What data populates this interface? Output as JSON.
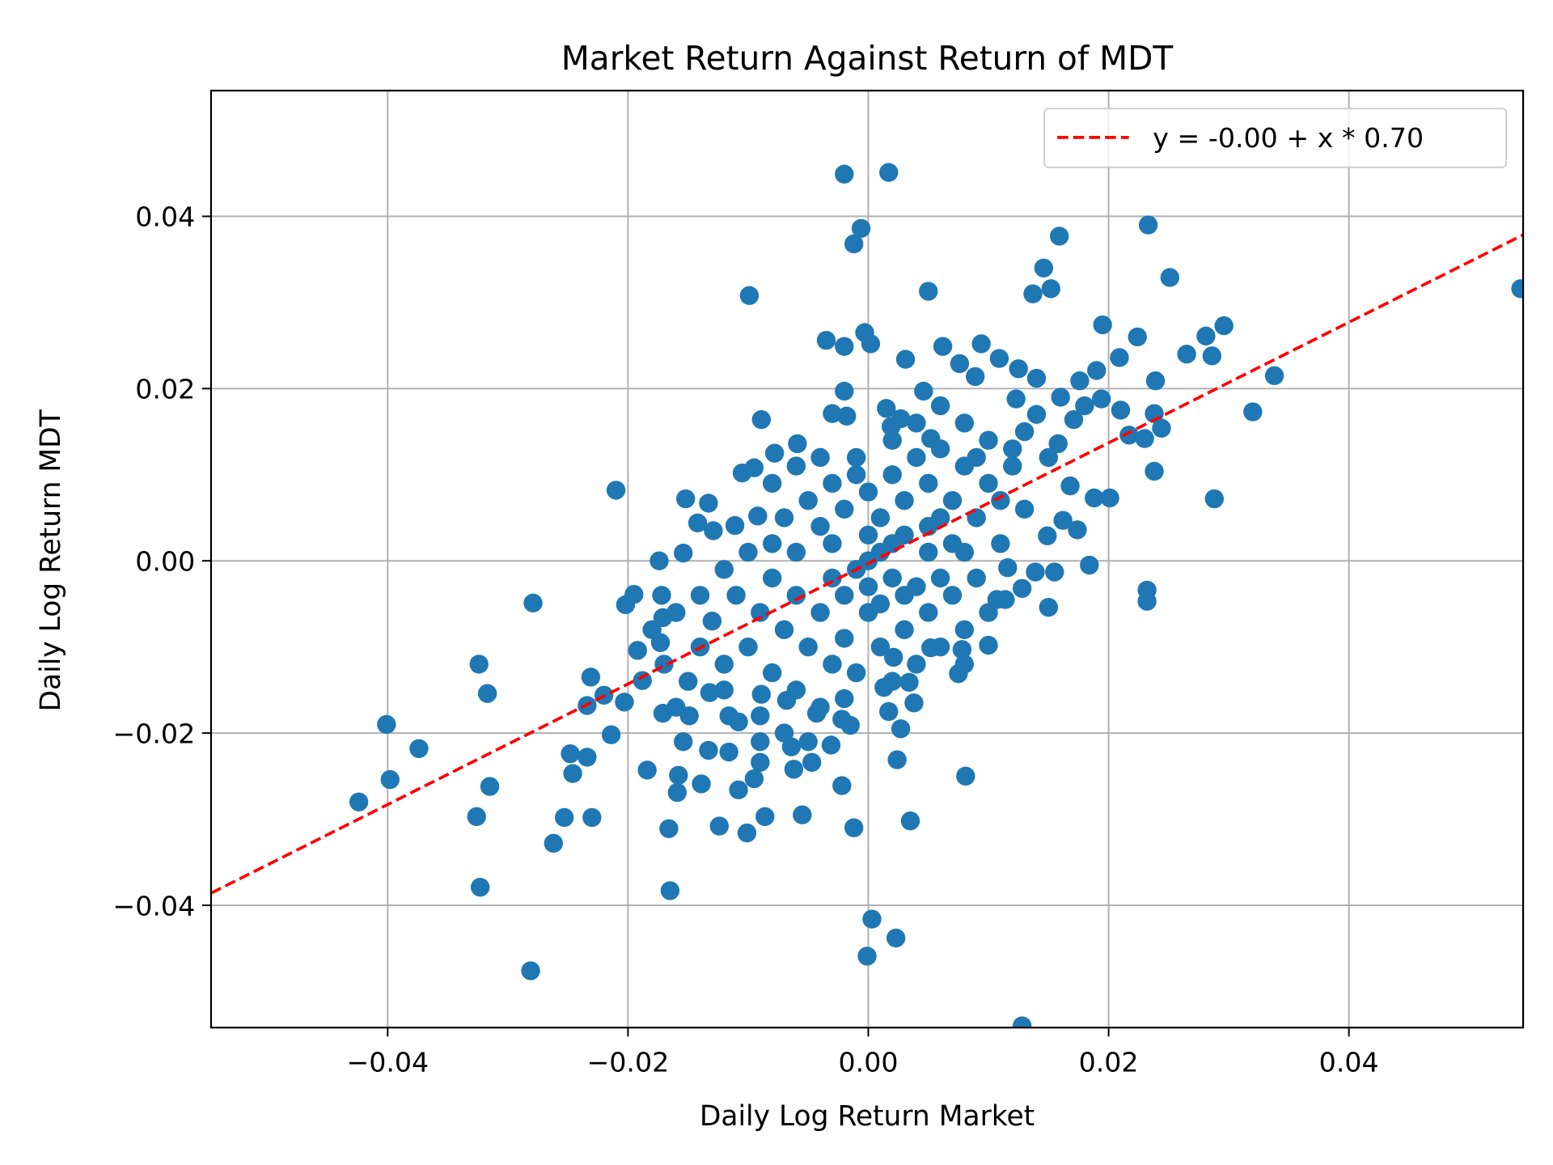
{
  "chart_data": {
    "type": "scatter",
    "title": "Market Return Against Return of MDT",
    "xlabel": "Daily Log Return Market",
    "ylabel": "Daily Log Return MDT",
    "xlim": [
      -0.0547,
      0.0545
    ],
    "ylim": [
      -0.0542,
      0.0546
    ],
    "xticks": [
      -0.04,
      -0.02,
      0.0,
      0.02,
      0.04
    ],
    "xtick_labels": [
      "−0.04",
      "−0.02",
      "0.00",
      "0.02",
      "0.04"
    ],
    "yticks": [
      -0.04,
      -0.02,
      0.0,
      0.02,
      0.04
    ],
    "ytick_labels": [
      "−0.04",
      "−0.02",
      "0.00",
      "0.02",
      "0.04"
    ],
    "grid": true,
    "legend_placement": "top-right",
    "point_color": "#1f77b4",
    "line_color": "#ff0000",
    "fit_line": {
      "label": "y = -0.00 + x * 0.70",
      "intercept": -0.0003,
      "slope": 0.7,
      "style": "dashed"
    },
    "points": [
      [
        -0.002,
        0.0449
      ],
      [
        0.0017,
        0.0451
      ],
      [
        -0.0006,
        0.0386
      ],
      [
        -0.0012,
        0.0368
      ],
      [
        -0.0099,
        0.0308
      ],
      [
        0.0233,
        0.039
      ],
      [
        0.0159,
        0.0377
      ],
      [
        0.0251,
        0.0329
      ],
      [
        0.0146,
        0.034
      ],
      [
        0.0152,
        0.0316
      ],
      [
        0.0137,
        0.031
      ],
      [
        0.005,
        0.0313
      ],
      [
        0.0543,
        0.0316
      ],
      [
        0.0338,
        0.0215
      ],
      [
        0.032,
        0.0173
      ],
      [
        0.0288,
        0.0072
      ],
      [
        0.0296,
        0.0273
      ],
      [
        0.0281,
        0.0261
      ],
      [
        0.0286,
        0.0238
      ],
      [
        0.0265,
        0.024
      ],
      [
        0.0224,
        0.026
      ],
      [
        0.0195,
        0.0274
      ],
      [
        0.0239,
        0.0209
      ],
      [
        0.0238,
        0.0171
      ],
      [
        0.0244,
        0.0154
      ],
      [
        0.023,
        0.0142
      ],
      [
        0.0238,
        0.0104
      ],
      [
        0.0232,
        -0.0034
      ],
      [
        0.0232,
        -0.0047
      ],
      [
        0.0184,
        -0.0005
      ],
      [
        0.015,
        -0.0054
      ],
      [
        0.0155,
        -0.0013
      ],
      [
        0.0149,
        0.0029
      ],
      [
        0.0201,
        0.0073
      ],
      [
        0.0188,
        0.0073
      ],
      [
        0.0081,
        -0.025
      ],
      [
        0.0035,
        -0.0302
      ],
      [
        0.0023,
        -0.0438
      ],
      [
        0.0003,
        -0.0416
      ],
      [
        -0.0001,
        -0.0459
      ],
      [
        0.0128,
        -0.054
      ],
      [
        -0.0012,
        -0.031
      ],
      [
        -0.0022,
        -0.0261
      ],
      [
        -0.0055,
        -0.0295
      ],
      [
        -0.0086,
        -0.0297
      ],
      [
        -0.0101,
        -0.0316
      ],
      [
        -0.0124,
        -0.0308
      ],
      [
        -0.0165,
        -0.0383
      ],
      [
        -0.0166,
        -0.0311
      ],
      [
        -0.0159,
        -0.0269
      ],
      [
        -0.0158,
        -0.0249
      ],
      [
        -0.0139,
        -0.0259
      ],
      [
        -0.0184,
        -0.0243
      ],
      [
        -0.0281,
        -0.0476
      ],
      [
        -0.0262,
        -0.0328
      ],
      [
        -0.0323,
        -0.0379
      ],
      [
        -0.0326,
        -0.0297
      ],
      [
        -0.0253,
        -0.0298
      ],
      [
        -0.023,
        -0.0298
      ],
      [
        -0.0315,
        -0.0262
      ],
      [
        -0.0246,
        -0.0247
      ],
      [
        -0.0248,
        -0.0224
      ],
      [
        -0.0234,
        -0.0228
      ],
      [
        -0.0214,
        -0.0202
      ],
      [
        -0.0234,
        -0.0168
      ],
      [
        -0.0231,
        -0.0135
      ],
      [
        -0.022,
        -0.0156
      ],
      [
        -0.0203,
        -0.0164
      ],
      [
        -0.0317,
        -0.0154
      ],
      [
        -0.0324,
        -0.012
      ],
      [
        -0.0424,
        -0.028
      ],
      [
        -0.0398,
        -0.0254
      ],
      [
        -0.0374,
        -0.0218
      ],
      [
        -0.0401,
        -0.019
      ],
      [
        -0.0279,
        -0.0049
      ],
      [
        -0.021,
        0.0082
      ],
      [
        -0.0192,
        -0.0104
      ],
      [
        -0.0202,
        -0.0051
      ],
      [
        -0.0195,
        -0.0039
      ],
      [
        -0.0174,
        0.0
      ],
      [
        -0.0154,
        0.0009
      ],
      [
        -0.0152,
        0.0072
      ],
      [
        -0.0172,
        -0.004
      ],
      [
        -0.0171,
        -0.0066
      ],
      [
        -0.0173,
        -0.0095
      ],
      [
        -0.0188,
        -0.0139
      ],
      [
        -0.0171,
        -0.0177
      ],
      [
        -0.0154,
        -0.021
      ],
      [
        -0.0133,
        -0.022
      ],
      [
        -0.0116,
        -0.0222
      ],
      [
        -0.0108,
        -0.0266
      ],
      [
        -0.0095,
        -0.0253
      ],
      [
        -0.009,
        -0.0234
      ],
      [
        -0.009,
        -0.021
      ],
      [
        -0.0062,
        -0.0242
      ],
      [
        -0.0047,
        -0.0234
      ],
      [
        -0.0031,
        -0.0214
      ],
      [
        -0.0064,
        -0.0216
      ],
      [
        -0.0116,
        -0.018
      ],
      [
        -0.0149,
        -0.018
      ],
      [
        -0.0132,
        -0.0153
      ],
      [
        -0.0108,
        -0.0187
      ],
      [
        -0.0089,
        -0.0155
      ],
      [
        -0.0068,
        -0.0162
      ],
      [
        -0.0043,
        -0.0177
      ],
      [
        -0.0022,
        -0.0184
      ],
      [
        -0.0015,
        -0.0191
      ],
      [
        0.0017,
        -0.0175
      ],
      [
        0.0027,
        -0.0195
      ],
      [
        0.0024,
        -0.0231
      ],
      [
        0.0038,
        -0.0165
      ],
      [
        0.0034,
        -0.0141
      ],
      [
        0.0013,
        -0.0147
      ],
      [
        0.0021,
        -0.0112
      ],
      [
        0.0052,
        -0.0101
      ],
      [
        0.0075,
        -0.0131
      ],
      [
        0.0078,
        -0.0103
      ],
      [
        0.01,
        -0.0098
      ],
      [
        0.0107,
        -0.0045
      ],
      [
        0.0114,
        -0.0045
      ],
      [
        0.0128,
        -0.0032
      ],
      [
        0.0139,
        -0.0013
      ],
      [
        0.0116,
        -0.0008
      ],
      [
        0.0174,
        0.0036
      ],
      [
        0.0162,
        0.0047
      ],
      [
        0.0168,
        0.0087
      ],
      [
        0.0158,
        0.0136
      ],
      [
        0.0171,
        0.0164
      ],
      [
        0.0176,
        0.0209
      ],
      [
        0.019,
        0.0221
      ],
      [
        0.0194,
        0.0188
      ],
      [
        0.021,
        0.0175
      ],
      [
        0.0217,
        0.0146
      ],
      [
        0.0209,
        0.0236
      ],
      [
        0.014,
        0.0212
      ],
      [
        0.0125,
        0.0223
      ],
      [
        0.0123,
        0.0188
      ],
      [
        0.0109,
        0.0235
      ],
      [
        0.0094,
        0.0252
      ],
      [
        0.0089,
        0.0214
      ],
      [
        0.0062,
        0.0249
      ],
      [
        0.0076,
        0.0229
      ],
      [
        0.0031,
        0.0234
      ],
      [
        0.0046,
        0.0197
      ],
      [
        -0.0003,
        0.0265
      ],
      [
        0.0002,
        0.0252
      ],
      [
        -0.002,
        0.0249
      ],
      [
        -0.0035,
        0.0256
      ],
      [
        -0.002,
        0.0197
      ],
      [
        -0.0018,
        0.0168
      ],
      [
        -0.003,
        0.0171
      ],
      [
        -0.0089,
        0.0164
      ],
      [
        -0.0059,
        0.0136
      ],
      [
        -0.0078,
        0.0125
      ],
      [
        -0.0095,
        0.0108
      ],
      [
        -0.0105,
        0.0102
      ],
      [
        -0.008,
        0.009
      ],
      [
        -0.0133,
        0.0067
      ],
      [
        -0.0142,
        0.0044
      ],
      [
        -0.0129,
        0.0035
      ],
      [
        -0.0111,
        0.0041
      ],
      [
        -0.0092,
        0.0052
      ],
      [
        0.0015,
        0.0177
      ],
      [
        0.0019,
        0.0156
      ],
      [
        0.0027,
        0.0165
      ],
      [
        0.0052,
        0.0142
      ],
      [
        -0.008,
        -0.002
      ],
      [
        -0.006,
        0.001
      ],
      [
        -0.004,
        0.004
      ],
      [
        -0.002,
        0.006
      ],
      [
        0,
        0.008
      ],
      [
        0.002,
        0.01
      ],
      [
        0.004,
        0.012
      ],
      [
        0.006,
        0.013
      ],
      [
        0.008,
        0.011
      ],
      [
        0.01,
        0.009
      ],
      [
        -0.009,
        -0.006
      ],
      [
        -0.007,
        -0.008
      ],
      [
        -0.005,
        -0.01
      ],
      [
        -0.003,
        -0.012
      ],
      [
        -0.001,
        -0.013
      ],
      [
        0.001,
        -0.01
      ],
      [
        0.003,
        -0.008
      ],
      [
        0.005,
        -0.006
      ],
      [
        0.007,
        -0.004
      ],
      [
        0.009,
        -0.002
      ],
      [
        -0.01,
        -0.01
      ],
      [
        -0.012,
        -0.012
      ],
      [
        -0.011,
        -0.004
      ],
      [
        -0.013,
        -0.007
      ],
      [
        -0.014,
        -0.01
      ],
      [
        -0.015,
        -0.014
      ],
      [
        -0.016,
        -0.017
      ],
      [
        -0.012,
        -0.015
      ],
      [
        -0.008,
        -0.013
      ],
      [
        -0.006,
        -0.015
      ],
      [
        -0.004,
        -0.017
      ],
      [
        -0.002,
        -0.016
      ],
      [
        0,
        -0.006
      ],
      [
        0,
        -0.003
      ],
      [
        0,
        0
      ],
      [
        0,
        0.003
      ],
      [
        -0.001,
        0.01
      ],
      [
        -0.003,
        0.009
      ],
      [
        -0.005,
        0.007
      ],
      [
        -0.007,
        0.005
      ],
      [
        0.001,
        0.005
      ],
      [
        0.003,
        0.003
      ],
      [
        0.005,
        0.001
      ],
      [
        0.007,
        0.002
      ],
      [
        0.009,
        0.005
      ],
      [
        0.011,
        0.007
      ],
      [
        0.012,
        0.011
      ],
      [
        0.013,
        0.015
      ],
      [
        0.014,
        0.017
      ],
      [
        0.016,
        0.019
      ],
      [
        0.018,
        0.018
      ],
      [
        0.015,
        0.012
      ],
      [
        0.013,
        0.006
      ],
      [
        0.011,
        0.002
      ],
      [
        0.008,
        -0.008
      ],
      [
        0.006,
        -0.01
      ],
      [
        0.004,
        -0.012
      ],
      [
        0.002,
        -0.014
      ],
      [
        -0.002,
        -0.009
      ],
      [
        -0.004,
        -0.006
      ],
      [
        -0.006,
        -0.004
      ],
      [
        -0.008,
        0.002
      ],
      [
        -0.01,
        0.001
      ],
      [
        -0.012,
        -0.001
      ],
      [
        -0.014,
        -0.004
      ],
      [
        -0.016,
        -0.006
      ],
      [
        -0.018,
        -0.008
      ],
      [
        -0.017,
        -0.012
      ],
      [
        -0.009,
        -0.018
      ],
      [
        -0.007,
        -0.02
      ],
      [
        -0.005,
        -0.021
      ],
      [
        0.002,
        0.014
      ],
      [
        0.004,
        0.016
      ],
      [
        0.006,
        0.018
      ],
      [
        0.008,
        0.016
      ],
      [
        0.01,
        0.014
      ],
      [
        0.012,
        0.013
      ],
      [
        -0.003,
        0.002
      ],
      [
        -0.001,
        -0.001
      ],
      [
        0.001,
        0.001
      ],
      [
        0.002,
        -0.002
      ],
      [
        -0.002,
        -0.004
      ],
      [
        0.003,
        0.007
      ],
      [
        0.005,
        0.009
      ],
      [
        0.007,
        0.007
      ],
      [
        0.009,
        0.012
      ],
      [
        0.006,
        0.005
      ],
      [
        0.004,
        -0.003
      ],
      [
        0.006,
        -0.002
      ],
      [
        0.008,
        0.001
      ],
      [
        -0.004,
        0.012
      ],
      [
        -0.006,
        0.011
      ],
      [
        -0.001,
        0.012
      ],
      [
        0.001,
        -0.005
      ],
      [
        0.003,
        -0.004
      ],
      [
        0.002,
        0.002
      ],
      [
        -0.003,
        -0.002
      ],
      [
        0.005,
        0.004
      ],
      [
        0.01,
        -0.006
      ],
      [
        0.008,
        -0.012
      ]
    ]
  }
}
